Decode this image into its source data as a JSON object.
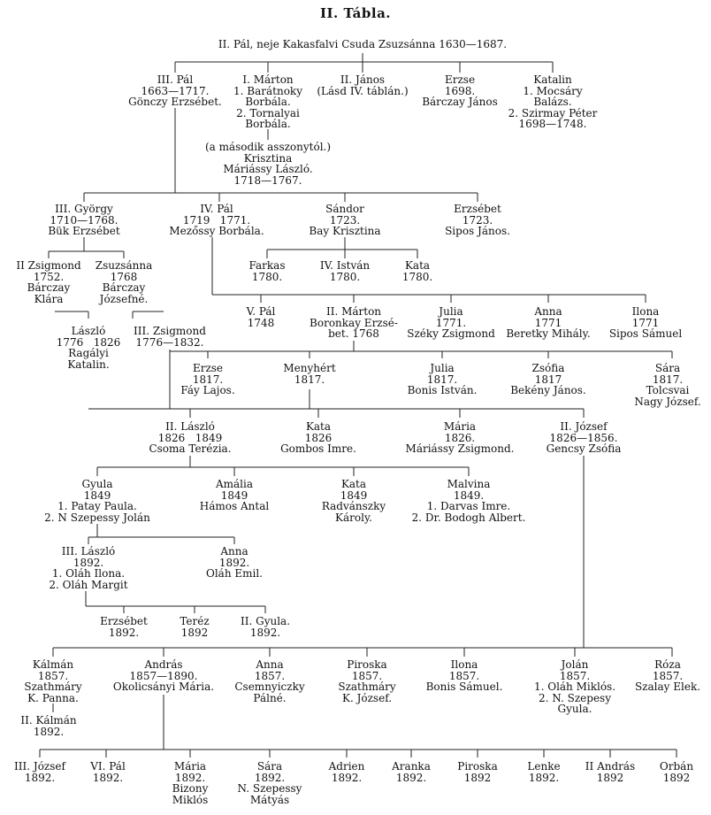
{
  "title": "II. Tábla.",
  "root": [
    "II. Pál, neje Kakasfalvi Csuda Zsuzsánna 1630—1687."
  ],
  "g1": {
    "pal3": [
      "III. Pál",
      "1663—1717.",
      "Gönczy Erzsébet."
    ],
    "marton1": [
      "I. Márton",
      "1. Barátnoky",
      "Borbála.",
      "2. Tornalyai",
      "Borbála."
    ],
    "janos2": [
      "II. János",
      "(Lásd IV. táblán.)"
    ],
    "erzse": [
      "Erzse",
      "1698.",
      "Bárczay János"
    ],
    "katalin": [
      "Katalin",
      "1. Mocsáry",
      "Balázs.",
      "2. Szirmay Péter",
      "1698—1748."
    ]
  },
  "krisztina": [
    "(a második asszonytól.)",
    "Krisztina",
    "Máriássy László.",
    "1718—1767."
  ],
  "g2": {
    "gyorgy3": [
      "III. György",
      "1710—1768.",
      "Bük Erzsébet"
    ],
    "pal4": [
      "IV. Pál",
      "1719   1771.",
      "Mezőssy Borbála."
    ],
    "sandor": [
      "Sándor",
      "1723.",
      "Bay Krisztina"
    ],
    "erzsebet": [
      "Erzsébet",
      "1723.",
      "Sipos János."
    ]
  },
  "g3a": {
    "zsigmond2": [
      "II Zsigmond",
      "1752.",
      "Bárczay",
      "Klára"
    ],
    "zsuzsanna": [
      "Zsuzsánna",
      "1768",
      "Bárczay",
      "Józsefné."
    ]
  },
  "g3b": {
    "farkas": [
      "Farkas",
      "1780."
    ],
    "istvan4": [
      "IV. István",
      "1780."
    ],
    "kata": [
      "Kata",
      "1780."
    ]
  },
  "g4": {
    "pal5": [
      "V. Pál",
      "1748"
    ],
    "marton2": [
      "II. Márton",
      "Boronkay Erzsé-",
      "bet. 1768"
    ],
    "julia": [
      "Julia",
      "1771.",
      "Széky Zsigmond"
    ],
    "anna": [
      "Anna",
      "1771",
      "Beretky Mihály."
    ],
    "ilona": [
      "Ilona",
      "1771",
      "Sipos Sámuel"
    ]
  },
  "g5a": {
    "laszlo": [
      "László",
      "1776   1826",
      "Ragályi",
      "Katalin."
    ],
    "zsigmond3": [
      "III. Zsigmond",
      "1776—1832."
    ]
  },
  "g5b": {
    "erzse2": [
      "Erzse",
      "1817.",
      "Fáy Lajos."
    ],
    "menyhert": [
      "Menyhért",
      "1817."
    ],
    "julia2": [
      "Julia",
      "1817.",
      "Bonis István."
    ],
    "zsofia": [
      "Zsófia",
      "1817",
      "Bekény János."
    ],
    "sara": [
      "Sára",
      "1817.",
      "Tolcsvai",
      "Nagy József."
    ]
  },
  "g6": {
    "laszlo2": [
      "II. László",
      "1826   1849",
      "Csoma Terézia."
    ],
    "kata2": [
      "Kata",
      "1826",
      "Gombos Imre."
    ],
    "maria": [
      "Mária",
      "1826.",
      "Máriássy Zsigmond."
    ],
    "jozsef2": [
      "II. József",
      "1826—1856.",
      "Gencsy Zsófia"
    ]
  },
  "g7": {
    "gyula": [
      "Gyula",
      "1849",
      "1. Patay Paula.",
      "2. N Szepessy Jolán"
    ],
    "amalia": [
      "Amália",
      "1849",
      "Hámos Antal"
    ],
    "kata3": [
      "Kata",
      "1849",
      "Radvánszky",
      "Károly."
    ],
    "malvina": [
      "Malvina",
      "1849.",
      "1. Darvas Imre.",
      "2. Dr. Bodogh Albert."
    ]
  },
  "g8": {
    "laszlo3": [
      "III. László",
      "1892.",
      "1. Oláh Ilona.",
      "2. Oláh Margit"
    ],
    "anna2": [
      "Anna",
      "1892.",
      "Oláh Emil."
    ]
  },
  "g9": {
    "erzsebet2": [
      "Erzsébet",
      "1892."
    ],
    "terez": [
      "Teréz",
      "1892"
    ],
    "gyula2": [
      "II. Gyula.",
      "1892."
    ]
  },
  "g10": {
    "kalman": [
      "Kálmán",
      "1857.",
      "Szathmáry",
      "K. Panna."
    ],
    "andras": [
      "András",
      "1857—1890.",
      "Okolicsányi Mária."
    ],
    "anna3": [
      "Anna",
      "1857.",
      "Csemnyiczky",
      "Pálné."
    ],
    "piroska": [
      "Piroska",
      "1857.",
      "Szathmáry",
      "K. József."
    ],
    "ilona2": [
      "Ilona",
      "1857.",
      "Bonis Sámuel."
    ],
    "jolan": [
      "Jolán",
      "1857.",
      "1. Oláh Miklós.",
      "2. N. Szepesy",
      "Gyula."
    ],
    "roza": [
      "Róza",
      "1857.",
      "Szalay Elek."
    ]
  },
  "kalman2": [
    "II. Kálmán",
    "1892."
  ],
  "g11": {
    "jozsef3": [
      "III. József",
      "1892."
    ],
    "pal6": [
      "VI. Pál",
      "1892."
    ],
    "maria2": [
      "Mária",
      "1892.",
      "Bizony",
      "Miklós"
    ],
    "sara2": [
      "Sára",
      "1892.",
      "N. Szepessy",
      "Mátyás"
    ],
    "adrien": [
      "Adrien",
      "1892."
    ],
    "aranka": [
      "Aranka",
      "1892."
    ],
    "piroska2": [
      "Piroska",
      "1892"
    ],
    "lenke": [
      "Lenke",
      "1892."
    ],
    "andras2": [
      "II András",
      "1892"
    ],
    "orban": [
      "Orbán",
      "1892"
    ]
  }
}
